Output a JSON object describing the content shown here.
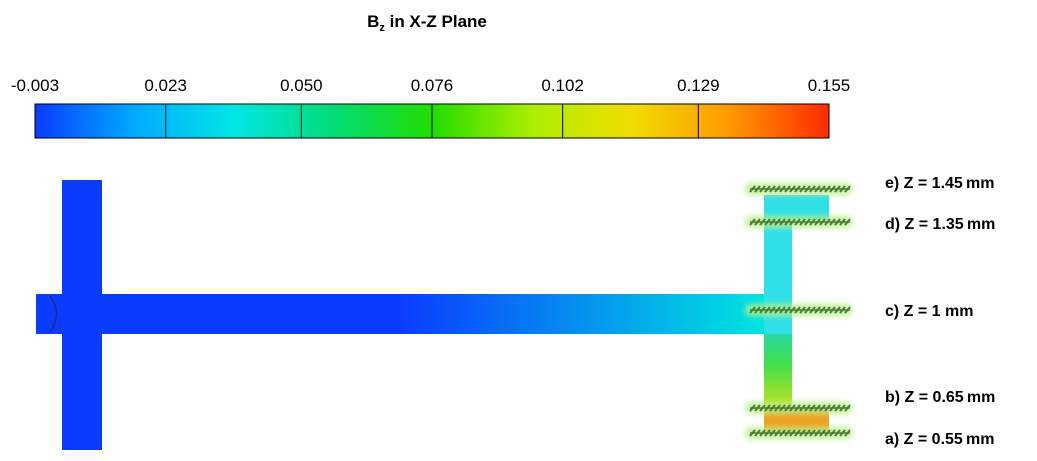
{
  "title": {
    "main": "B",
    "sub": "z",
    "rest": " in X-Z Plane"
  },
  "colorbar": {
    "ticks": [
      -0.003,
      0.023,
      0.05,
      0.076,
      0.102,
      0.129,
      0.155
    ],
    "tick_labels": [
      "-0.003",
      "0.023",
      "0.050",
      "0.076",
      "0.102",
      "0.129",
      "0.155"
    ],
    "colors": [
      "#0a3cff",
      "#00aaff",
      "#00e6e6",
      "#00dd77",
      "#22dd00",
      "#aaee00",
      "#f0dd00",
      "#ff9900",
      "#ff2a00"
    ]
  },
  "geometry_colors": {
    "left_block": "#0a3cff",
    "trunk_start": "#0a3cff",
    "trunk_end": "#00e5e0",
    "top_column": "#2fe0e8",
    "bottom_column_top": "#29d9a0",
    "bottom_column_mid": "#3fe04a",
    "bottom_column_low": "#c8e020",
    "bottom_pad": "#f0a020",
    "marker": "#4c7a3a",
    "marker_glow": "#b8f088"
  },
  "planes": [
    {
      "id": "e",
      "label": "e) Z = 1.45 mm"
    },
    {
      "id": "d",
      "label": "d) Z = 1.35 mm"
    },
    {
      "id": "c",
      "label": "c) Z = 1 mm"
    },
    {
      "id": "b",
      "label": "b) Z = 0.65 mm"
    },
    {
      "id": "a",
      "label": "a) Z = 0.55 mm"
    }
  ]
}
